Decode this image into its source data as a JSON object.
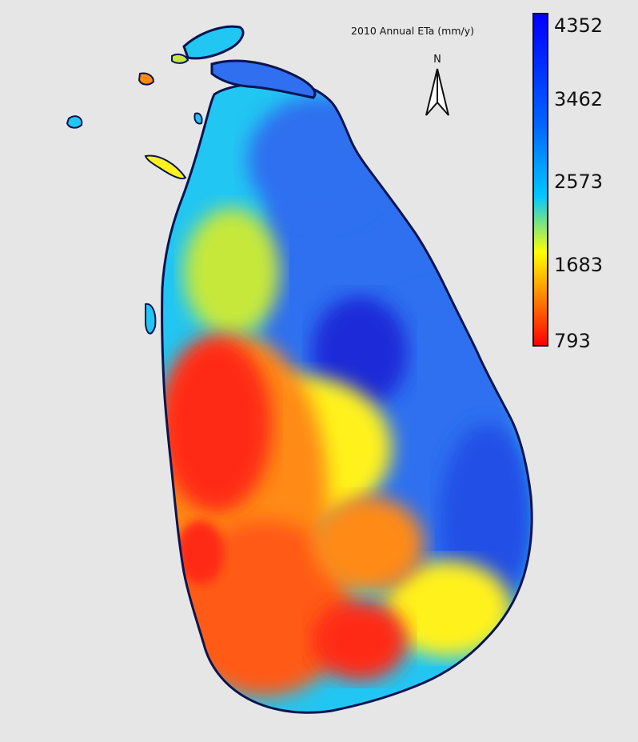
{
  "title": "2010 Annual ETa (mm/y)",
  "north_arrow": {
    "label": "N"
  },
  "colorbar": {
    "ticks": [
      "4352",
      "3462",
      "2573",
      "1683",
      "793"
    ],
    "colors": [
      "#0000ff",
      "#00c8ff",
      "#ffff00",
      "#ff0000"
    ]
  },
  "map": {
    "subject": "Sri Lanka",
    "background": "#e6e6e6",
    "palette": {
      "deep_blue": "#1a2bd8",
      "blue": "#2f6ff0",
      "cyan": "#22c6f2",
      "yellow_green": "#c6e83a",
      "yellow": "#fff21e",
      "orange": "#ff8a12",
      "red": "#ff2a12",
      "outline": "#0a1450"
    }
  }
}
